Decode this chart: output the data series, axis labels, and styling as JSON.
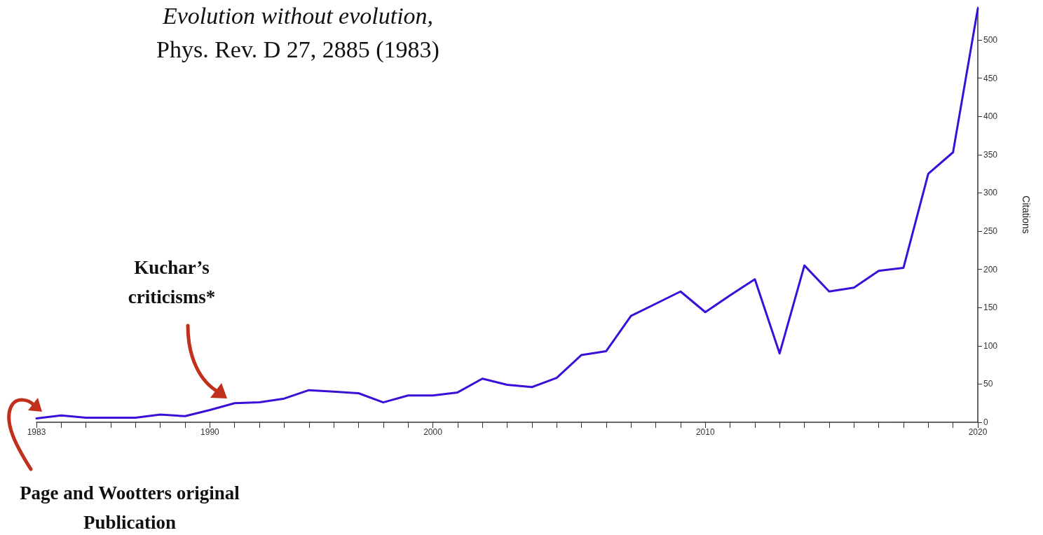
{
  "chart_data": {
    "type": "line",
    "title": "Evolution without evolution,",
    "subtitle": "Phys. Rev. D 27, 2885 (1983)",
    "ylabel": "Citations",
    "annotations": [
      "Kuchar’s criticisms*",
      "Page and Wootters original Publication"
    ],
    "categories": [
      "1983",
      null,
      null,
      null,
      null,
      null,
      null,
      "1990",
      null,
      null,
      null,
      null,
      null,
      null,
      null,
      null,
      "2000",
      null,
      null,
      null,
      null,
      null,
      null,
      null,
      null,
      null,
      null,
      "2010",
      null,
      null,
      null,
      null,
      null,
      null,
      null,
      null,
      null,
      null,
      "2020"
    ],
    "values": [
      5,
      9,
      6,
      6,
      6,
      10,
      8,
      16,
      25,
      26,
      31,
      42,
      40,
      38,
      26,
      35,
      35,
      39,
      57,
      49,
      46,
      58,
      88,
      93,
      139,
      155,
      171,
      144,
      166,
      187,
      90,
      205,
      171,
      176,
      198,
      202,
      325,
      353,
      541
    ],
    "color": "#3a10d8",
    "ylim": [
      0,
      543
    ],
    "yticks": [
      0,
      50,
      100,
      150,
      200,
      250,
      300,
      350,
      400,
      450,
      500
    ],
    "marker": "none",
    "line_style": "solid"
  }
}
